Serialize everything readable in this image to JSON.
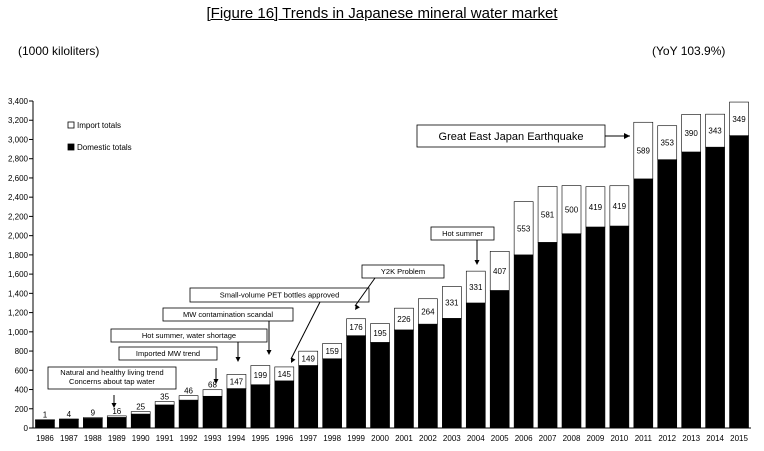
{
  "title": "[Figure 16] Trends in Japanese mineral water market",
  "unit_left": "(1000 kiloliters)",
  "unit_right": "(YoY 103.9%)",
  "chart_data": {
    "type": "bar",
    "stacked": true,
    "categories": [
      "1986",
      "1987",
      "1988",
      "1989",
      "1990",
      "1991",
      "1992",
      "1993",
      "1994",
      "1995",
      "1996",
      "1997",
      "1998",
      "1999",
      "2000",
      "2001",
      "2002",
      "2003",
      "2004",
      "2005",
      "2006",
      "2007",
      "2008",
      "2009",
      "2010",
      "2011",
      "2012",
      "2013",
      "2014",
      "2015"
    ],
    "series": [
      {
        "name": "Domestic totals",
        "color": "#000000",
        "values": [
          85,
          90,
          100,
          110,
          145,
          240,
          290,
          330,
          410,
          450,
          490,
          650,
          720,
          960,
          890,
          1020,
          1080,
          1140,
          1300,
          1430,
          1800,
          1930,
          2020,
          2090,
          2100,
          2590,
          2790,
          2870,
          2920,
          3040
        ]
      },
      {
        "name": "Import totals",
        "color": "#ffffff",
        "values": [
          1,
          4,
          9,
          16,
          25,
          35,
          46,
          68,
          147,
          199,
          145,
          149,
          159,
          176,
          195,
          226,
          264,
          331,
          331,
          407,
          553,
          581,
          500,
          419,
          419,
          589,
          353,
          390,
          343,
          349
        ]
      }
    ],
    "data_labels": [
      "1",
      "4",
      "9",
      "16",
      "25",
      "35",
      "46",
      "68",
      "147",
      "199",
      "145",
      "149",
      "159",
      "176",
      "195",
      "226",
      "264",
      "331",
      "331",
      "407",
      "553",
      "581",
      "500",
      "419",
      "419",
      "589",
      "353",
      "390",
      "343",
      "349"
    ],
    "ylim": [
      0,
      3400
    ],
    "yticks": [
      "0",
      "200",
      "400",
      "600",
      "800",
      "1,000",
      "1,200",
      "1,400",
      "1,600",
      "1,800",
      "2,000",
      "2,200",
      "2,400",
      "2,600",
      "2,800",
      "3,000",
      "3,200",
      "3,400"
    ],
    "grid": false,
    "legend_placement": "top-left",
    "legend": [
      {
        "label": "Import totals",
        "fill": "#ffffff"
      },
      {
        "label": "Domestic totals",
        "fill": "#000000"
      }
    ],
    "annotations": [
      {
        "year": "1989",
        "lines": [
          "Natural and healthy living trend",
          "Concerns about tap water"
        ],
        "size": "small"
      },
      {
        "year": "1993",
        "lines": [
          "Imported MW trend"
        ],
        "size": "small"
      },
      {
        "year": "1994",
        "lines": [
          "Hot summer, water shortage"
        ],
        "size": "small"
      },
      {
        "year": "1995",
        "lines": [
          "MW contamination scandal"
        ],
        "size": "small"
      },
      {
        "year": "1996",
        "lines": [
          "Small-volume PET bottles approved"
        ],
        "size": "small"
      },
      {
        "year": "1999",
        "lines": [
          "Y2K Problem"
        ],
        "size": "small"
      },
      {
        "year": "2004",
        "lines": [
          "Hot summer"
        ],
        "size": "small"
      },
      {
        "year": "2011",
        "lines": [
          "Great East Japan Earthquake"
        ],
        "size": "large"
      }
    ]
  }
}
